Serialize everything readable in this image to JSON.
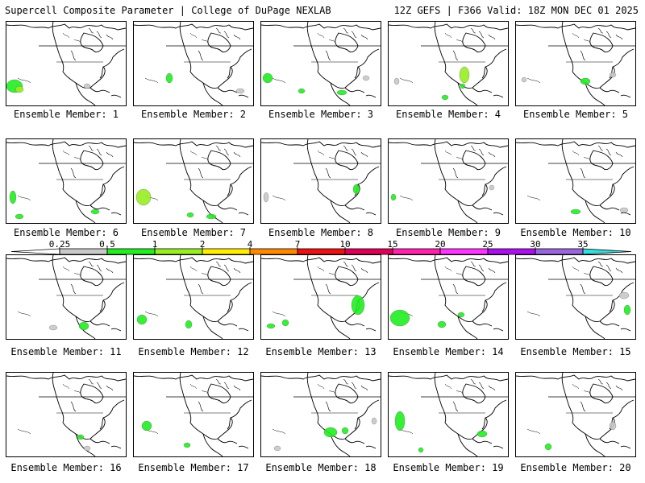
{
  "header": {
    "title_left": "Supercell Composite Parameter | College of DuPage NEXLAB",
    "title_right": "12Z GEFS | F366 Valid: 18Z MON DEC 01 2025"
  },
  "member_label_prefix": "Ensemble Member: ",
  "members": [
    {
      "num": "1"
    },
    {
      "num": "2"
    },
    {
      "num": "3"
    },
    {
      "num": "4"
    },
    {
      "num": "5"
    },
    {
      "num": "6"
    },
    {
      "num": "7"
    },
    {
      "num": "8"
    },
    {
      "num": "9"
    },
    {
      "num": "10"
    },
    {
      "num": "11"
    },
    {
      "num": "12"
    },
    {
      "num": "13"
    },
    {
      "num": "14"
    },
    {
      "num": "15"
    },
    {
      "num": "16"
    },
    {
      "num": "17"
    },
    {
      "num": "18"
    },
    {
      "num": "19"
    },
    {
      "num": "20"
    }
  ],
  "colorbar": {
    "ticks": [
      "0.25",
      "0.5",
      "1",
      "2",
      "4",
      "7",
      "10",
      "15",
      "20",
      "25",
      "30",
      "35"
    ],
    "colors": [
      "#c8c8c8",
      "#22ee22",
      "#99ee22",
      "#ffee00",
      "#ff8800",
      "#ee1111",
      "#dd0055",
      "#ff22aa",
      "#ff33ff",
      "#aa11ee",
      "#9966dd",
      "#33dddd"
    ]
  }
}
